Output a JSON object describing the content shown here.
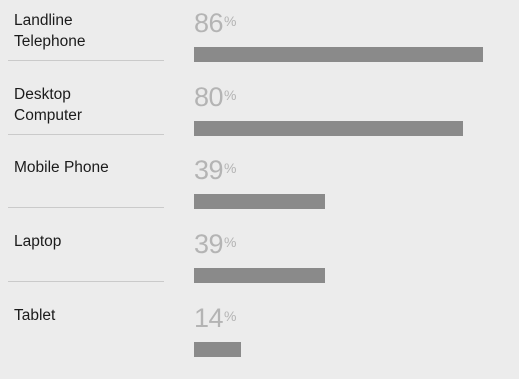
{
  "chart_data": {
    "type": "bar",
    "orientation": "horizontal",
    "categories": [
      "Landline\nTelephone",
      "Desktop\nComputer",
      "Mobile Phone",
      "Laptop",
      "Tablet"
    ],
    "values": [
      86,
      80,
      39,
      39,
      14
    ],
    "value_suffix": "%",
    "xlim": [
      0,
      100
    ],
    "grid": false,
    "legend": "none"
  },
  "rows": [
    {
      "label": "Landline\nTelephone",
      "value": "86",
      "unit": "%"
    },
    {
      "label": "Desktop\nComputer",
      "value": "80",
      "unit": "%"
    },
    {
      "label": "Mobile Phone",
      "value": "39",
      "unit": "%"
    },
    {
      "label": "Laptop",
      "value": "39",
      "unit": "%"
    },
    {
      "label": "Tablet",
      "value": "14",
      "unit": "%"
    }
  ],
  "colors": {
    "background": "#ececec",
    "bar": "#8a8a8a",
    "value_text": "#b4b4b4",
    "label_text": "#1b1b1b",
    "divider": "#cacaca"
  }
}
